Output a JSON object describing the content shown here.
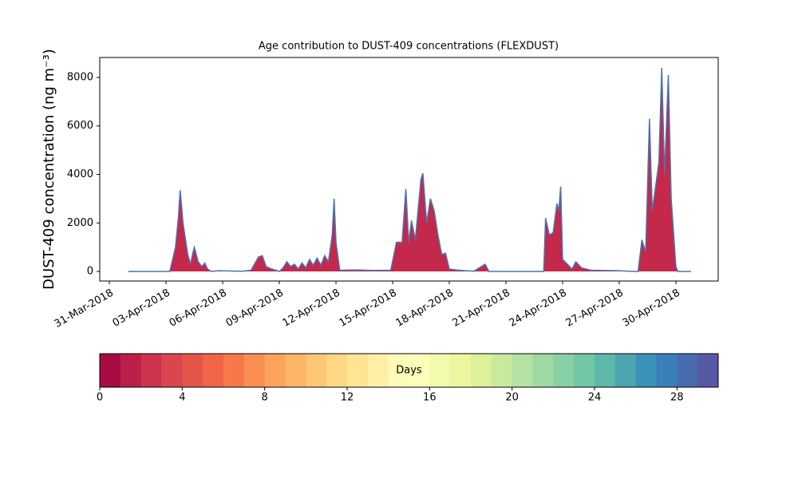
{
  "chart_data": {
    "type": "area",
    "title": "Age contribution to DUST-409 concentrations (FLEXDUST)",
    "y_label": "DUST-409 concentration (ng m⁻³)",
    "x": [
      1.0,
      3.2,
      3.5,
      3.65,
      3.75,
      3.9,
      4.15,
      4.3,
      4.4,
      4.5,
      4.7,
      4.9,
      5.05,
      5.2,
      5.4,
      5.8,
      7.0,
      7.5,
      7.9,
      8.1,
      8.3,
      8.6,
      9.0,
      9.2,
      9.4,
      9.6,
      9.8,
      10.0,
      10.2,
      10.4,
      10.6,
      10.8,
      11.0,
      11.2,
      11.4,
      11.6,
      11.8,
      11.9,
      12.0,
      12.2,
      13.0,
      14.0,
      14.9,
      15.2,
      15.5,
      15.7,
      15.85,
      16.0,
      16.2,
      16.5,
      16.6,
      16.8,
      17.0,
      17.2,
      17.4,
      17.6,
      17.8,
      18.0,
      18.5,
      19.3,
      19.9,
      20.1,
      23.0,
      23.1,
      23.3,
      23.5,
      23.7,
      23.8,
      23.9,
      24.0,
      24.5,
      24.7,
      25.0,
      25.5,
      27.0,
      27.8,
      28.0,
      28.2,
      28.4,
      28.6,
      28.75,
      29.1,
      29.25,
      29.4,
      29.6,
      29.75,
      30.0,
      30.1,
      30.8
    ],
    "values": [
      0,
      0,
      1000,
      2200,
      3350,
      2000,
      700,
      300,
      700,
      1000,
      400,
      200,
      350,
      100,
      0,
      30,
      10,
      50,
      600,
      650,
      200,
      100,
      0,
      150,
      400,
      200,
      300,
      100,
      350,
      150,
      500,
      250,
      550,
      250,
      650,
      400,
      1500,
      3000,
      1200,
      50,
      60,
      40,
      50,
      1200,
      1200,
      3400,
      1200,
      2100,
      1300,
      3800,
      4050,
      2000,
      3000,
      2500,
      1500,
      700,
      750,
      100,
      50,
      10,
      300,
      0,
      0,
      2200,
      1500,
      1600,
      2800,
      2500,
      3500,
      500,
      100,
      400,
      150,
      50,
      30,
      0,
      0,
      1300,
      800,
      6300,
      2500,
      4500,
      8400,
      4000,
      8100,
      3000,
      200,
      0,
      0
    ],
    "color": "#c4284a",
    "line_color": "#4c72b0",
    "xlim": [
      -0.51,
      32.24
    ],
    "xticks": [
      {
        "value": 0,
        "label": "31-Mar-2018"
      },
      {
        "value": 3,
        "label": "03-Apr-2018"
      },
      {
        "value": 6,
        "label": "06-Apr-2018"
      },
      {
        "value": 9,
        "label": "09-Apr-2018"
      },
      {
        "value": 12,
        "label": "12-Apr-2018"
      },
      {
        "value": 15,
        "label": "15-Apr-2018"
      },
      {
        "value": 18,
        "label": "18-Apr-2018"
      },
      {
        "value": 21,
        "label": "21-Apr-2018"
      },
      {
        "value": 24,
        "label": "24-Apr-2018"
      },
      {
        "value": 27,
        "label": "27-Apr-2018"
      },
      {
        "value": 30,
        "label": "30-Apr-2018"
      }
    ],
    "ylim": [
      -395,
      8823
    ],
    "yticks": [
      0,
      2000,
      4000,
      6000,
      8000
    ],
    "colorbar_label": "Days",
    "colorbar_lim": [
      0,
      30
    ],
    "colorbar_ticks": [
      0,
      4,
      8,
      12,
      16,
      20,
      24,
      28
    ],
    "colormap": [
      "#9e0142",
      "#d53e4f",
      "#f46d43",
      "#fdae61",
      "#fee08b",
      "#ffffbf",
      "#e6f598",
      "#abdda4",
      "#66c2a5",
      "#3288bd",
      "#5e4fa2"
    ]
  }
}
